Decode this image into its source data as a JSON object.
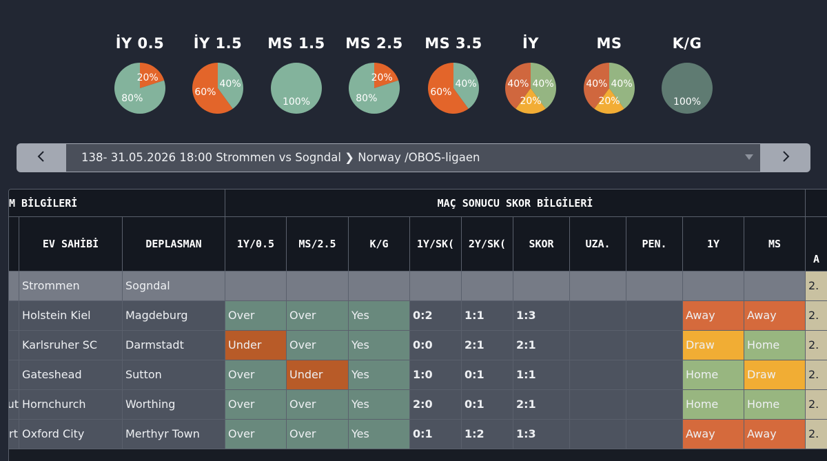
{
  "stats": [
    {
      "title": "İY 0.5",
      "slices": [
        {
          "value": 20,
          "label": "20%",
          "color": "#e3652a"
        },
        {
          "value": 80,
          "label": "80%",
          "color": "#83b39c"
        }
      ]
    },
    {
      "title": "İY 1.5",
      "slices": [
        {
          "value": 40,
          "label": "40%",
          "color": "#83b39c"
        },
        {
          "value": 60,
          "label": "60%",
          "color": "#e3652a"
        }
      ]
    },
    {
      "title": "MS 1.5",
      "slices": [
        {
          "value": 100,
          "label": "100%",
          "color": "#83b39c"
        }
      ]
    },
    {
      "title": "MS 2.5",
      "slices": [
        {
          "value": 20,
          "label": "20%",
          "color": "#e3652a"
        },
        {
          "value": 80,
          "label": "80%",
          "color": "#83b39c"
        }
      ]
    },
    {
      "title": "MS 3.5",
      "slices": [
        {
          "value": 40,
          "label": "40%",
          "color": "#83b39c"
        },
        {
          "value": 60,
          "label": "60%",
          "color": "#e3652a"
        }
      ]
    },
    {
      "title": "İY",
      "slices": [
        {
          "value": 40,
          "label": "40%",
          "color": "#95b582"
        },
        {
          "value": 20,
          "label": "20%",
          "color": "#f2ad35"
        },
        {
          "value": 40,
          "label": "40%",
          "color": "#d0673e"
        }
      ]
    },
    {
      "title": "MS",
      "slices": [
        {
          "value": 40,
          "label": "40%",
          "color": "#95b582"
        },
        {
          "value": 20,
          "label": "20%",
          "color": "#f2ad35"
        },
        {
          "value": 40,
          "label": "40%",
          "color": "#d0673e"
        }
      ]
    },
    {
      "title": "K/G",
      "slices": [
        {
          "value": 100,
          "label": "100%",
          "color": "#5f7b72"
        }
      ]
    }
  ],
  "match_selector": {
    "prev_icon": "chevron-left-icon",
    "next_icon": "chevron-right-icon",
    "selected": "138- 31.05.2026 18:00 Strommen vs Sogndal ❯ Norway /OBOS-ligaen"
  },
  "table": {
    "group_left": "M BİLGİLERİ",
    "group_right": "MAÇ SONUCU SKOR BİLGİLERİ",
    "headers": [
      "EV SAHİBİ",
      "DEPLASMAN",
      "1Y/0.5",
      "MS/2.5",
      "K/G",
      "1Y/SK(",
      "2Y/SK(",
      "SKOR",
      "UZA.",
      "PEN.",
      "1Y",
      "MS",
      "A"
    ],
    "first_row": {
      "home": "Strommen",
      "away": "Sogndal",
      "edge": "2."
    },
    "rows": [
      {
        "prefix": "",
        "home": "Holstein Kiel",
        "away": "Magdeburg",
        "y05": "Over",
        "ms25": "Over",
        "kg": "Yes",
        "sk1": "0:2",
        "sk2": "1:1",
        "skor": "1:3",
        "uza": "",
        "pen": "",
        "iy": "Away",
        "ms": "Away",
        "edge": "2."
      },
      {
        "prefix": "",
        "home": "Karlsruher SC",
        "away": "Darmstadt",
        "y05": "Under",
        "ms25": "Over",
        "kg": "Yes",
        "sk1": "0:0",
        "sk2": "2:1",
        "skor": "2:1",
        "uza": "",
        "pen": "",
        "iy": "Draw",
        "ms": "Home",
        "edge": "2."
      },
      {
        "prefix": "",
        "home": "Gateshead",
        "away": "Sutton",
        "y05": "Over",
        "ms25": "Under",
        "kg": "Yes",
        "sk1": "1:0",
        "sk2": "0:1",
        "skor": "1:1",
        "uza": "",
        "pen": "",
        "iy": "Home",
        "ms": "Draw",
        "edge": "2."
      },
      {
        "prefix": "ut",
        "home": "Hornchurch",
        "away": "Worthing",
        "y05": "Over",
        "ms25": "Over",
        "kg": "Yes",
        "sk1": "2:0",
        "sk2": "0:1",
        "skor": "2:1",
        "uza": "",
        "pen": "",
        "iy": "Home",
        "ms": "Home",
        "edge": "2."
      },
      {
        "prefix": "rt",
        "home": "Oxford City",
        "away": "Merthyr Town",
        "y05": "Over",
        "ms25": "Over",
        "kg": "Yes",
        "sk1": "0:1",
        "sk2": "1:2",
        "skor": "1:3",
        "uza": "",
        "pen": "",
        "iy": "Away",
        "ms": "Away",
        "edge": "2."
      }
    ]
  }
}
